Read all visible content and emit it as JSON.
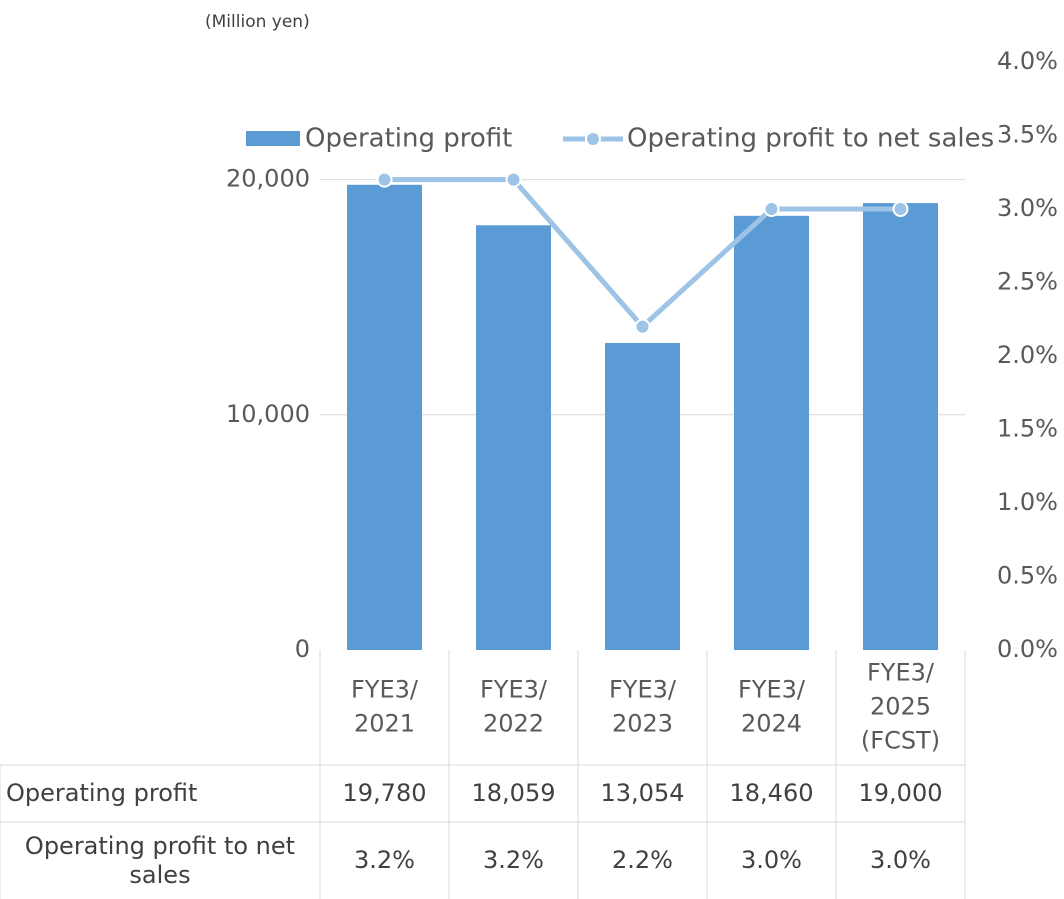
{
  "chart_data": {
    "type": "bar",
    "unit_label": "(Million yen)",
    "categories": [
      "FYE3/\n2021",
      "FYE3/\n2022",
      "FYE3/\n2023",
      "FYE3/\n2024",
      "FYE3/\n2025\n(FCST)"
    ],
    "series": [
      {
        "name": "Operating profit",
        "type": "bar",
        "color": "#5b9bd5",
        "values": [
          19780,
          18059,
          13054,
          18460,
          19000
        ],
        "value_labels": [
          "19,780",
          "18,059",
          "13,054",
          "18,460",
          "19,000"
        ]
      },
      {
        "name": "Operating profit to net sales",
        "type": "line",
        "axis": "y2",
        "color": "#9dc3e6",
        "values": [
          3.2,
          3.2,
          2.2,
          3.0,
          3.0
        ],
        "value_labels": [
          "3.2%",
          "3.2%",
          "2.2%",
          "3.0%",
          "3.0%"
        ]
      }
    ],
    "ylim": [
      0,
      25000
    ],
    "yticks": [
      0,
      {
        "value": 10000,
        "label": "10,000"
      },
      {
        "value": 20000,
        "label": "20,000"
      }
    ],
    "y2lim": [
      0,
      4
    ],
    "y2ticks": [
      {
        "value": 0,
        "label": "0.0%"
      },
      {
        "value": 0.5,
        "label": "0.5%"
      },
      {
        "value": 1,
        "label": "1.0%"
      },
      {
        "value": 1.5,
        "label": "1.5%"
      },
      {
        "value": 2,
        "label": "2.0%"
      },
      {
        "value": 2.5,
        "label": "2.5%"
      },
      {
        "value": 3,
        "label": "3.0%"
      },
      {
        "value": 3.5,
        "label": "3.5%"
      },
      {
        "value": 4,
        "label": "4.0%"
      }
    ],
    "grid": true,
    "legend": "top"
  }
}
